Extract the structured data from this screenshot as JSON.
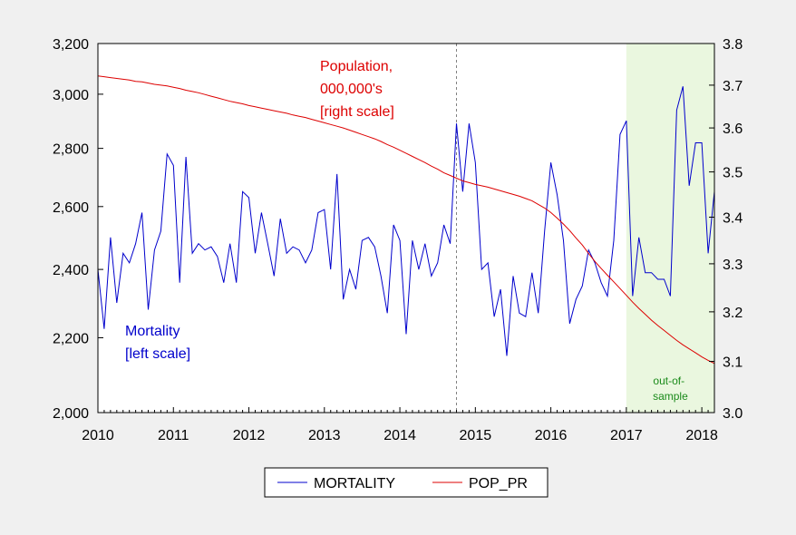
{
  "chart_data": {
    "type": "line",
    "x_start": "2010-01",
    "x_step": "month",
    "x_ticks": [
      "2010",
      "2011",
      "2012",
      "2013",
      "2014",
      "2015",
      "2016",
      "2017",
      "2018"
    ],
    "x_range": [
      "2010-01",
      "2018-03"
    ],
    "y_left": {
      "scale": "log",
      "range": [
        2000,
        3200
      ],
      "ticks": [
        2000,
        2200,
        2400,
        2600,
        2800,
        3000,
        3200
      ],
      "tick_labels": [
        "2,000",
        "2,200",
        "2,400",
        "2,600",
        "2,800",
        "3,000",
        "3,200"
      ]
    },
    "y_right": {
      "scale": "log",
      "range": [
        3.0,
        3.8
      ],
      "ticks": [
        3.0,
        3.1,
        3.2,
        3.3,
        3.4,
        3.5,
        3.6,
        3.7,
        3.8
      ],
      "tick_labels": [
        "3.0",
        "3.1",
        "3.2",
        "3.3",
        "3.4",
        "3.5",
        "3.6",
        "3.7",
        "3.8"
      ]
    },
    "grid": false,
    "legend_position": "bottom-center",
    "vertical_line": "2014-10",
    "shaded_region": {
      "from": "2017-01",
      "to": "2018-03",
      "color": "#eaf7df",
      "label": [
        "out-of-",
        "sample"
      ]
    },
    "annotations": {
      "population": [
        "Population,",
        "000,000's",
        "[right scale]"
      ],
      "mortality": [
        "Mortality",
        "[left scale]"
      ]
    },
    "series": [
      {
        "name": "MORTALITY",
        "axis": "left",
        "color": "#0000cc",
        "values": [
          2400,
          2225,
          2500,
          2300,
          2450,
          2420,
          2480,
          2580,
          2280,
          2460,
          2520,
          2780,
          2740,
          2360,
          2770,
          2450,
          2480,
          2460,
          2470,
          2440,
          2360,
          2480,
          2360,
          2650,
          2630,
          2450,
          2580,
          2480,
          2380,
          2560,
          2450,
          2470,
          2460,
          2420,
          2460,
          2580,
          2590,
          2400,
          2710,
          2310,
          2400,
          2340,
          2490,
          2500,
          2470,
          2380,
          2270,
          2540,
          2490,
          2210,
          2490,
          2400,
          2480,
          2380,
          2420,
          2540,
          2480,
          2890,
          2650,
          2890,
          2750,
          2400,
          2420,
          2260,
          2340,
          2150,
          2380,
          2270,
          2260,
          2390,
          2270,
          2520,
          2750,
          2640,
          2490,
          2240,
          2310,
          2350,
          2460,
          2420,
          2360,
          2320,
          2490,
          2850,
          2900,
          2320,
          2500,
          2390,
          2390,
          2370,
          2370,
          2320,
          2940,
          3030,
          2670,
          2820,
          2820,
          2450,
          2650
        ]
      },
      {
        "name": "POP_PR",
        "axis": "right",
        "color": "#dd0000",
        "values": [
          3.722,
          3.72,
          3.718,
          3.716,
          3.714,
          3.712,
          3.709,
          3.708,
          3.705,
          3.702,
          3.7,
          3.698,
          3.695,
          3.692,
          3.688,
          3.685,
          3.682,
          3.678,
          3.674,
          3.67,
          3.666,
          3.662,
          3.659,
          3.656,
          3.652,
          3.649,
          3.646,
          3.643,
          3.64,
          3.637,
          3.634,
          3.63,
          3.627,
          3.624,
          3.62,
          3.616,
          3.612,
          3.608,
          3.604,
          3.6,
          3.595,
          3.59,
          3.585,
          3.58,
          3.575,
          3.569,
          3.562,
          3.556,
          3.549,
          3.542,
          3.535,
          3.528,
          3.521,
          3.513,
          3.506,
          3.498,
          3.492,
          3.486,
          3.48,
          3.476,
          3.472,
          3.469,
          3.466,
          3.462,
          3.458,
          3.454,
          3.45,
          3.446,
          3.441,
          3.436,
          3.428,
          3.42,
          3.41,
          3.398,
          3.385,
          3.371,
          3.355,
          3.34,
          3.322,
          3.305,
          3.29,
          3.276,
          3.262,
          3.248,
          3.234,
          3.22,
          3.207,
          3.195,
          3.183,
          3.172,
          3.162,
          3.152,
          3.142,
          3.133,
          3.125,
          3.117,
          3.109,
          3.102,
          3.096
        ]
      }
    ]
  }
}
